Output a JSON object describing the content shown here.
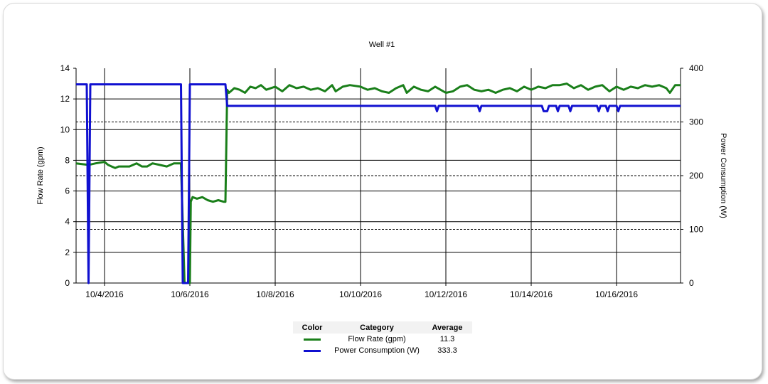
{
  "chart_data": {
    "type": "line",
    "title": "Well #1",
    "xlabel": "",
    "ylabel": "Flow Rate (gpm)",
    "y2label": "Power Consumption (W)",
    "x_range": [
      "2016-10-03 08:00",
      "2016-10-17 12:00"
    ],
    "ylim": [
      0,
      14
    ],
    "y2lim": [
      0,
      400
    ],
    "yticks": [
      "0",
      "2",
      "4",
      "6",
      "8",
      "10",
      "12",
      "14"
    ],
    "y2ticks": [
      "0",
      "100",
      "200",
      "300",
      "400"
    ],
    "xticks": [
      {
        "date": "2016-10-04",
        "label": "10/4/2016"
      },
      {
        "date": "2016-10-06",
        "label": "10/6/2016"
      },
      {
        "date": "2016-10-08",
        "label": "10/8/2016"
      },
      {
        "date": "2016-10-10",
        "label": "10/10/2016"
      },
      {
        "date": "2016-10-12",
        "label": "10/12/2016"
      },
      {
        "date": "2016-10-14",
        "label": "10/14/2016"
      },
      {
        "date": "2016-10-16",
        "label": "10/16/2016"
      }
    ],
    "grid": true,
    "series": [
      {
        "name": "Flow Rate (gpm)",
        "axis": "left",
        "color": "#1a7f1a",
        "points": [
          [
            "2016-10-03 08:00",
            7.8
          ],
          [
            "2016-10-03 15:00",
            7.7
          ],
          [
            "2016-10-03 19:00",
            7.8
          ],
          [
            "2016-10-04 00:00",
            7.9
          ],
          [
            "2016-10-04 02:00",
            7.7
          ],
          [
            "2016-10-04 04:00",
            7.6
          ],
          [
            "2016-10-04 06:00",
            7.5
          ],
          [
            "2016-10-04 08:00",
            7.6
          ],
          [
            "2016-10-04 14:00",
            7.6
          ],
          [
            "2016-10-04 18:00",
            7.8
          ],
          [
            "2016-10-04 21:00",
            7.6
          ],
          [
            "2016-10-05 00:00",
            7.6
          ],
          [
            "2016-10-05 03:00",
            7.8
          ],
          [
            "2016-10-05 07:00",
            7.7
          ],
          [
            "2016-10-05 11:00",
            7.6
          ],
          [
            "2016-10-05 15:00",
            7.8
          ],
          [
            "2016-10-05 19:00",
            7.8
          ],
          [
            "2016-10-05 21:00",
            0
          ],
          [
            "2016-10-06 00:00",
            0
          ],
          [
            "2016-10-06 00:30",
            5.3
          ],
          [
            "2016-10-06 01:30",
            5.6
          ],
          [
            "2016-10-06 04:00",
            5.5
          ],
          [
            "2016-10-06 07:00",
            5.6
          ],
          [
            "2016-10-06 10:00",
            5.4
          ],
          [
            "2016-10-06 13:00",
            5.3
          ],
          [
            "2016-10-06 16:00",
            5.4
          ],
          [
            "2016-10-06 19:00",
            5.3
          ],
          [
            "2016-10-06 20:00",
            5.3
          ],
          [
            "2016-10-06 21:00",
            12.6
          ],
          [
            "2016-10-06 22:00",
            12.4
          ],
          [
            "2016-10-07 01:00",
            12.7
          ],
          [
            "2016-10-07 04:00",
            12.6
          ],
          [
            "2016-10-07 07:00",
            12.4
          ],
          [
            "2016-10-07 10:00",
            12.8
          ],
          [
            "2016-10-07 13:00",
            12.7
          ],
          [
            "2016-10-07 16:00",
            12.9
          ],
          [
            "2016-10-07 19:00",
            12.6
          ],
          [
            "2016-10-08 00:00",
            12.8
          ],
          [
            "2016-10-08 04:00",
            12.5
          ],
          [
            "2016-10-08 08:00",
            12.9
          ],
          [
            "2016-10-08 12:00",
            12.7
          ],
          [
            "2016-10-08 16:00",
            12.8
          ],
          [
            "2016-10-08 20:00",
            12.6
          ],
          [
            "2016-10-09 00:00",
            12.7
          ],
          [
            "2016-10-09 04:00",
            12.5
          ],
          [
            "2016-10-09 08:00",
            12.9
          ],
          [
            "2016-10-09 10:00",
            12.5
          ],
          [
            "2016-10-09 14:00",
            12.8
          ],
          [
            "2016-10-09 18:00",
            12.9
          ],
          [
            "2016-10-10 00:00",
            12.8
          ],
          [
            "2016-10-10 04:00",
            12.6
          ],
          [
            "2016-10-10 08:00",
            12.7
          ],
          [
            "2016-10-10 12:00",
            12.5
          ],
          [
            "2016-10-10 16:00",
            12.4
          ],
          [
            "2016-10-10 20:00",
            12.7
          ],
          [
            "2016-10-11 00:00",
            12.9
          ],
          [
            "2016-10-11 02:00",
            12.4
          ],
          [
            "2016-10-11 06:00",
            12.8
          ],
          [
            "2016-10-11 10:00",
            12.6
          ],
          [
            "2016-10-11 14:00",
            12.5
          ],
          [
            "2016-10-11 18:00",
            12.8
          ],
          [
            "2016-10-12 00:00",
            12.4
          ],
          [
            "2016-10-12 04:00",
            12.5
          ],
          [
            "2016-10-12 08:00",
            12.8
          ],
          [
            "2016-10-12 12:00",
            12.9
          ],
          [
            "2016-10-12 16:00",
            12.6
          ],
          [
            "2016-10-12 20:00",
            12.5
          ],
          [
            "2016-10-13 00:00",
            12.6
          ],
          [
            "2016-10-13 04:00",
            12.4
          ],
          [
            "2016-10-13 08:00",
            12.6
          ],
          [
            "2016-10-13 12:00",
            12.7
          ],
          [
            "2016-10-13 16:00",
            12.5
          ],
          [
            "2016-10-13 20:00",
            12.8
          ],
          [
            "2016-10-14 00:00",
            12.6
          ],
          [
            "2016-10-14 04:00",
            12.8
          ],
          [
            "2016-10-14 08:00",
            12.7
          ],
          [
            "2016-10-14 12:00",
            12.9
          ],
          [
            "2016-10-14 16:00",
            12.9
          ],
          [
            "2016-10-14 20:00",
            13.0
          ],
          [
            "2016-10-15 00:00",
            12.7
          ],
          [
            "2016-10-15 04:00",
            12.9
          ],
          [
            "2016-10-15 08:00",
            12.6
          ],
          [
            "2016-10-15 12:00",
            12.8
          ],
          [
            "2016-10-15 16:00",
            12.9
          ],
          [
            "2016-10-15 20:00",
            12.5
          ],
          [
            "2016-10-16 00:00",
            12.8
          ],
          [
            "2016-10-16 04:00",
            12.6
          ],
          [
            "2016-10-16 08:00",
            12.8
          ],
          [
            "2016-10-16 12:00",
            12.7
          ],
          [
            "2016-10-16 16:00",
            12.9
          ],
          [
            "2016-10-16 20:00",
            12.8
          ],
          [
            "2016-10-17 00:00",
            12.9
          ],
          [
            "2016-10-17 04:00",
            12.7
          ],
          [
            "2016-10-17 06:00",
            12.4
          ],
          [
            "2016-10-17 09:00",
            12.9
          ],
          [
            "2016-10-17 12:00",
            12.9
          ]
        ]
      },
      {
        "name": "Power Consumption (W)",
        "axis": "right",
        "color": "#1010d0",
        "points": [
          [
            "2016-10-03 08:00",
            370
          ],
          [
            "2016-10-03 14:00",
            370
          ],
          [
            "2016-10-03 15:00",
            0
          ],
          [
            "2016-10-03 16:00",
            370
          ],
          [
            "2016-10-05 19:00",
            370
          ],
          [
            "2016-10-05 20:00",
            0
          ],
          [
            "2016-10-05 23:00",
            0
          ],
          [
            "2016-10-06 00:00",
            370
          ],
          [
            "2016-10-06 20:00",
            370
          ],
          [
            "2016-10-06 21:00",
            330
          ],
          [
            "2016-10-11 18:00",
            330
          ],
          [
            "2016-10-11 19:00",
            320
          ],
          [
            "2016-10-11 20:00",
            330
          ],
          [
            "2016-10-12 18:00",
            330
          ],
          [
            "2016-10-12 19:00",
            320
          ],
          [
            "2016-10-12 20:00",
            330
          ],
          [
            "2016-10-14 06:00",
            330
          ],
          [
            "2016-10-14 07:00",
            320
          ],
          [
            "2016-10-14 09:00",
            320
          ],
          [
            "2016-10-14 10:00",
            330
          ],
          [
            "2016-10-14 14:00",
            330
          ],
          [
            "2016-10-14 15:00",
            320
          ],
          [
            "2016-10-14 16:00",
            330
          ],
          [
            "2016-10-14 21:00",
            330
          ],
          [
            "2016-10-14 22:00",
            320
          ],
          [
            "2016-10-14 23:00",
            330
          ],
          [
            "2016-10-15 13:00",
            330
          ],
          [
            "2016-10-15 14:00",
            320
          ],
          [
            "2016-10-15 15:00",
            330
          ],
          [
            "2016-10-15 18:00",
            330
          ],
          [
            "2016-10-15 19:00",
            320
          ],
          [
            "2016-10-15 20:00",
            330
          ],
          [
            "2016-10-16 00:00",
            330
          ],
          [
            "2016-10-16 01:00",
            320
          ],
          [
            "2016-10-16 02:00",
            330
          ],
          [
            "2016-10-17 12:00",
            330
          ]
        ]
      }
    ]
  },
  "legend_table": {
    "headers": [
      "Color",
      "Category",
      "Average"
    ],
    "rows": [
      {
        "color": "#1a7f1a",
        "category": "Flow Rate (gpm)",
        "average": "11.3"
      },
      {
        "color": "#1010d0",
        "category": "Power Consumption (W)",
        "average": "333.3"
      }
    ]
  }
}
